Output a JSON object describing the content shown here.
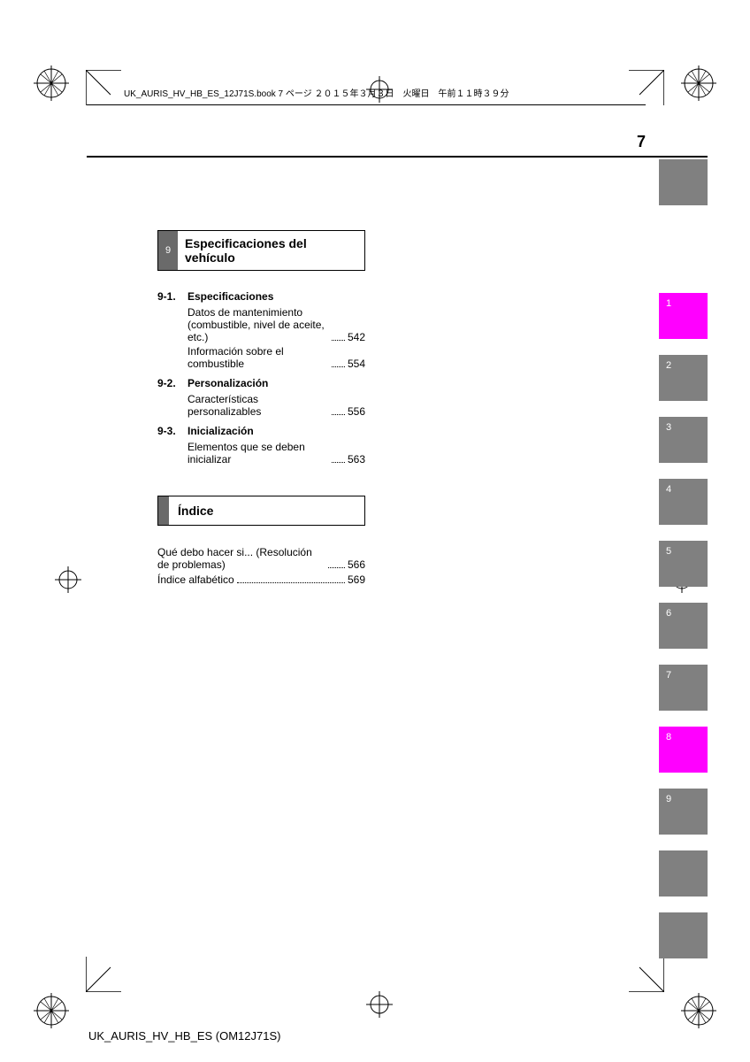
{
  "header_text": "UK_AURIS_HV_HB_ES_12J71S.book  7 ページ  ２０１５年３月３日　火曜日　午前１１時３９分",
  "page_number": "7",
  "section9": {
    "num": "9",
    "title": "Especificaciones del vehículo"
  },
  "toc": [
    {
      "type": "subhead",
      "sn": "9-1.",
      "label": "Especificaciones"
    },
    {
      "type": "row",
      "label": "Datos de mantenimiento (combustible, nivel de aceite, etc.)",
      "page": "542"
    },
    {
      "type": "row",
      "label": "Información sobre el combustible",
      "page": "554"
    },
    {
      "type": "subhead",
      "sn": "9-2.",
      "label": "Personalización"
    },
    {
      "type": "row",
      "label": "Características personalizables",
      "page": "556"
    },
    {
      "type": "subhead",
      "sn": "9-3.",
      "label": "Inicialización"
    },
    {
      "type": "row",
      "label": "Elementos que se deben inicializar",
      "page": "563"
    }
  ],
  "index_box": {
    "title": "Índice"
  },
  "toc2": [
    {
      "label": "Qué debo hacer si... (Resolución de problemas)",
      "page": "566"
    },
    {
      "label": "Índice alfabético",
      "page": "569"
    }
  ],
  "side_tabs": [
    {
      "n": "1",
      "color": "#ff00ff"
    },
    {
      "n": "2",
      "color": "#808080"
    },
    {
      "n": "3",
      "color": "#808080"
    },
    {
      "n": "4",
      "color": "#808080"
    },
    {
      "n": "5",
      "color": "#808080"
    },
    {
      "n": "6",
      "color": "#808080"
    },
    {
      "n": "7",
      "color": "#808080"
    },
    {
      "n": "8",
      "color": "#ff00ff"
    },
    {
      "n": "9",
      "color": "#808080"
    },
    {
      "n": "",
      "color": "#808080"
    },
    {
      "n": "",
      "color": "#808080"
    }
  ],
  "footer_id": "UK_AURIS_HV_HB_ES (OM12J71S)",
  "colors": {
    "gray": "#808080",
    "dark_gray": "#6a6a6a",
    "magenta": "#ff00ff",
    "black": "#000000",
    "white": "#ffffff"
  }
}
